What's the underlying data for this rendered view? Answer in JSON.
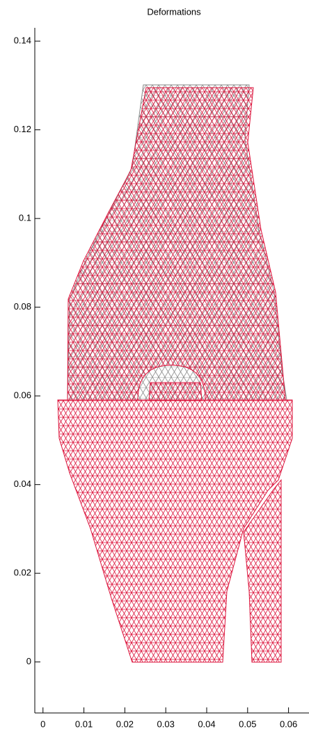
{
  "chart_data": {
    "type": "mesh",
    "title": "Deformations",
    "xlim": [
      -0.002,
      0.065
    ],
    "ylim": [
      -0.0115,
      0.143
    ],
    "xticks": [
      0,
      0.01,
      0.02,
      0.03,
      0.04,
      0.05,
      0.06
    ],
    "yticks": [
      0,
      0.02,
      0.04,
      0.06,
      0.08,
      0.1,
      0.12,
      0.14
    ],
    "color": "#dc143c"
  }
}
